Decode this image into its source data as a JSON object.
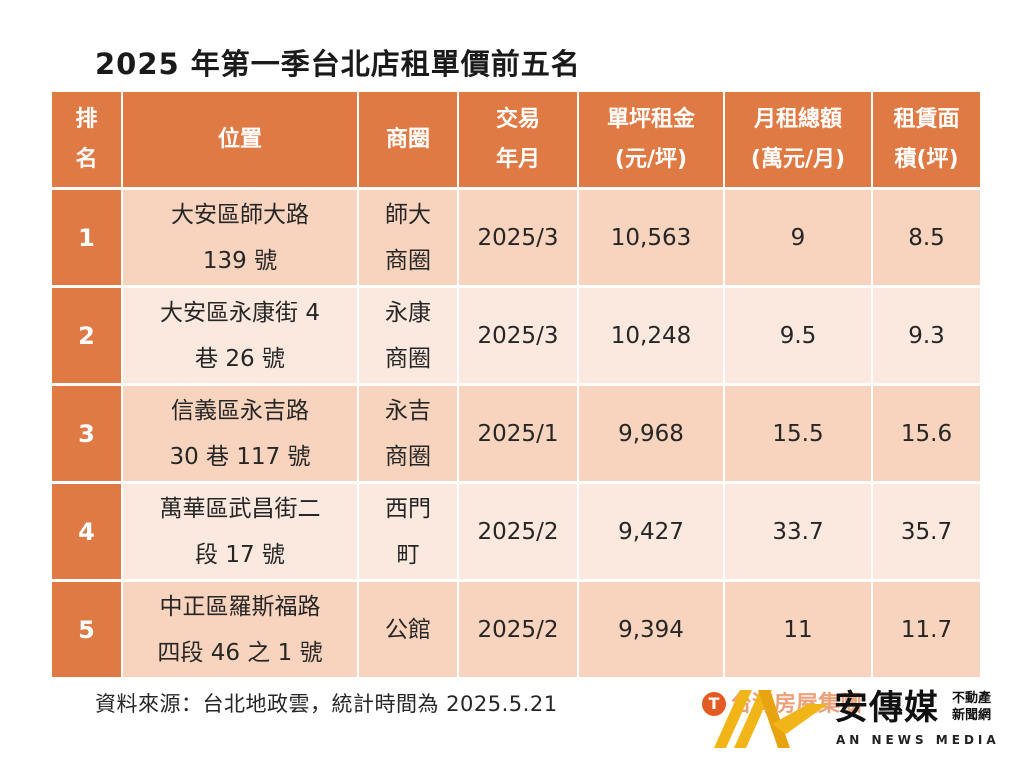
{
  "title": "2025 年第一季台北店租單價前五名",
  "table": {
    "headers": {
      "rank": [
        "排",
        "名"
      ],
      "location": "位置",
      "district": "商圈",
      "date": [
        "交易",
        "年月"
      ],
      "unit_price": [
        "單坪租金",
        "(元/坪)"
      ],
      "monthly_total": [
        "月租總額",
        "(萬元/月)"
      ],
      "area": [
        "租賃面",
        "積(坪)"
      ]
    },
    "rows": [
      {
        "rank": "1",
        "location": [
          "大安區師大路",
          "139 號"
        ],
        "district": [
          "師大",
          "商圈"
        ],
        "date": "2025/3",
        "unit_price": "10,563",
        "monthly_total": "9",
        "area": "8.5"
      },
      {
        "rank": "2",
        "location": [
          "大安區永康街 4",
          "巷 26 號"
        ],
        "district": [
          "永康",
          "商圈"
        ],
        "date": "2025/3",
        "unit_price": "10,248",
        "monthly_total": "9.5",
        "area": "9.3"
      },
      {
        "rank": "3",
        "location": [
          "信義區永吉路",
          "30 巷 117 號"
        ],
        "district": [
          "永吉",
          "商圈"
        ],
        "date": "2025/1",
        "unit_price": "9,968",
        "monthly_total": "15.5",
        "area": "15.6"
      },
      {
        "rank": "4",
        "location": [
          "萬華區武昌街二",
          "段 17 號"
        ],
        "district": [
          "西門",
          "町"
        ],
        "date": "2025/2",
        "unit_price": "9,427",
        "monthly_total": "33.7",
        "area": "35.7"
      },
      {
        "rank": "5",
        "location": [
          "中正區羅斯福路",
          "四段 46 之 1 號"
        ],
        "district": [
          "公館"
        ],
        "date": "2025/2",
        "unit_price": "9,394",
        "monthly_total": "11",
        "area": "11.7"
      }
    ]
  },
  "source": "資料來源：台北地政雲，統計時間為 2025.5.21",
  "faded_logo_text": "台灣房屋集團",
  "watermark": {
    "name": "安傳媒",
    "subtitle": [
      "不動產",
      "新聞網"
    ],
    "english": "AN NEWS MEDIA"
  },
  "colors": {
    "header_bg": "#e07a45",
    "row_odd_bg": "#f8d3bd",
    "row_even_bg": "#fbe9df",
    "logo_orange": "#e35b22",
    "watermark_gold": "#f2b517"
  }
}
